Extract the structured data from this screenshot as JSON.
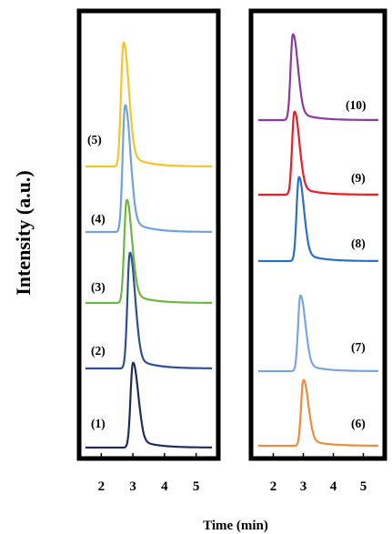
{
  "chart_data": {
    "type": "line",
    "ylabel": "Intensity (a.u.)",
    "xlabel": "Time (min)",
    "xlim": [
      1.5,
      5.5
    ],
    "panels": [
      {
        "id": "left",
        "xticks": [
          2,
          3,
          4,
          5
        ],
        "series": [
          {
            "name": "(1)",
            "color": "#1f2d5c",
            "peak_time": 3.0,
            "peak_height": 1.0
          },
          {
            "name": "(2)",
            "color": "#2f4f8f",
            "peak_time": 2.9,
            "peak_height": 1.0
          },
          {
            "name": "(3)",
            "color": "#6fb544",
            "peak_time": 2.8,
            "peak_height": 1.0
          },
          {
            "name": "(4)",
            "color": "#6fa3de",
            "peak_time": 2.75,
            "peak_height": 1.0
          },
          {
            "name": "(5)",
            "color": "#f6c42a",
            "peak_time": 2.7,
            "peak_height": 1.0
          }
        ]
      },
      {
        "id": "right",
        "xticks": [
          2,
          3,
          4,
          5
        ],
        "series": [
          {
            "name": "(6)",
            "color": "#f08a3c",
            "peak_time": 3.0,
            "peak_height": 1.0
          },
          {
            "name": "(7)",
            "color": "#7aa6e0",
            "peak_time": 2.9,
            "peak_height": 1.0
          },
          {
            "name": "(8)",
            "color": "#2a70c4",
            "peak_time": 2.85,
            "peak_height": 1.0
          },
          {
            "name": "(9)",
            "color": "#ee1c25",
            "peak_time": 2.7,
            "peak_height": 1.0
          },
          {
            "name": "(10)",
            "color": "#8a3aa3",
            "peak_time": 2.65,
            "peak_height": 1.0
          }
        ]
      }
    ]
  }
}
